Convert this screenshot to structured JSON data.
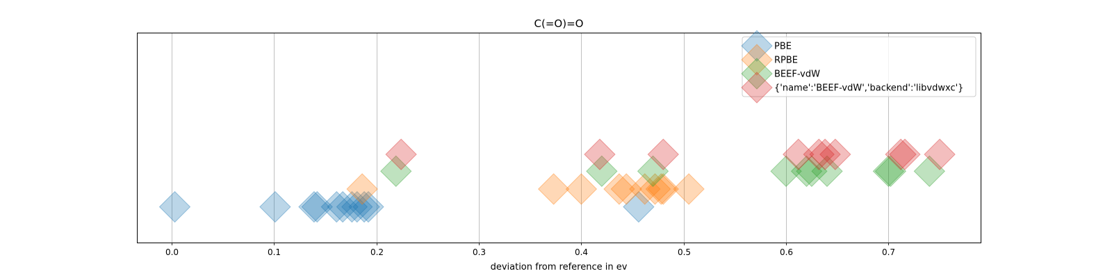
{
  "chart_data": {
    "type": "scatter",
    "title": "C(=O)=O",
    "xlabel": "deviation from reference in ev",
    "ylabel": "",
    "xlim": [
      -0.034,
      0.79
    ],
    "x_ticks": [
      0.0,
      0.1,
      0.2,
      0.3,
      0.4,
      0.5,
      0.6,
      0.7
    ],
    "x_tick_labels": [
      "0.0",
      "0.1",
      "0.2",
      "0.3",
      "0.4",
      "0.5",
      "0.6",
      "0.7"
    ],
    "ylim": [
      0,
      1
    ],
    "grid": "vertical",
    "legend_position": "top-right",
    "marker": "diamond",
    "series": [
      {
        "name": "PBE",
        "color": "#1f77b4",
        "y": 0.17,
        "x": [
          0.003,
          0.101,
          0.139,
          0.142,
          0.161,
          0.167,
          0.176,
          0.181,
          0.188,
          0.192,
          0.456
        ]
      },
      {
        "name": "RPBE",
        "color": "#ff7f0e",
        "y": 0.255,
        "x": [
          0.186,
          0.373,
          0.4,
          0.437,
          0.444,
          0.462,
          0.472,
          0.478,
          0.48,
          0.505
        ]
      },
      {
        "name": "BEEF-vdW",
        "color": "#2ca02c",
        "y": 0.34,
        "x": [
          0.219,
          0.42,
          0.47,
          0.6,
          0.62,
          0.625,
          0.64,
          0.7,
          0.702,
          0.74
        ]
      },
      {
        "name": "{'name':'BEEF-vdW','backend':'libvdwxc'}",
        "color": "#d62728",
        "y": 0.42,
        "x": [
          0.224,
          0.418,
          0.48,
          0.612,
          0.632,
          0.638,
          0.648,
          0.712,
          0.716,
          0.75
        ]
      }
    ]
  }
}
